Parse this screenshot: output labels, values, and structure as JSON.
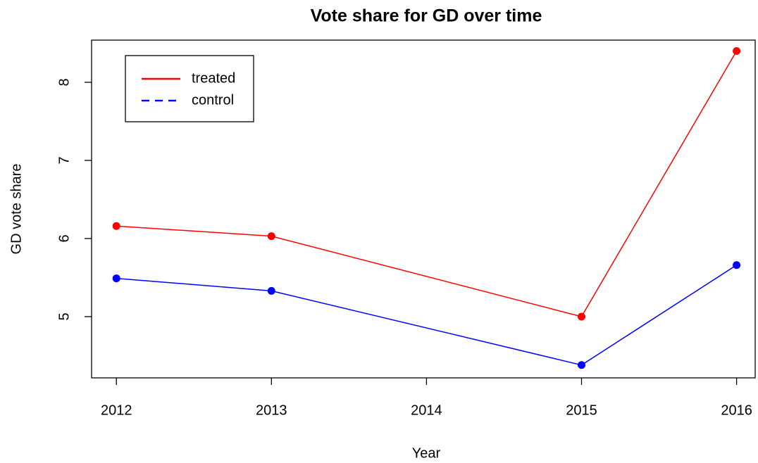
{
  "chart_data": {
    "type": "line",
    "title": "Vote share for GD over time",
    "x_label": "Year",
    "y_label": "GD vote share",
    "x": [
      2012,
      2013,
      2015,
      2016
    ],
    "series": [
      {
        "name": "treated",
        "color": "#ff0000",
        "values": [
          6.16,
          6.03,
          5.0,
          8.4
        ],
        "legend_dashed": false
      },
      {
        "name": "control",
        "color": "#0000ff",
        "values": [
          5.49,
          5.33,
          4.38,
          5.66
        ],
        "legend_dashed": true
      }
    ],
    "xlim": [
      2011.84,
      2016.12
    ],
    "xticks": [
      2012,
      2013,
      2014,
      2015,
      2016
    ],
    "ylim": [
      4.216,
      8.54
    ],
    "yticks": [
      5,
      6,
      7,
      8
    ],
    "legend": "top-left",
    "markers": true
  }
}
